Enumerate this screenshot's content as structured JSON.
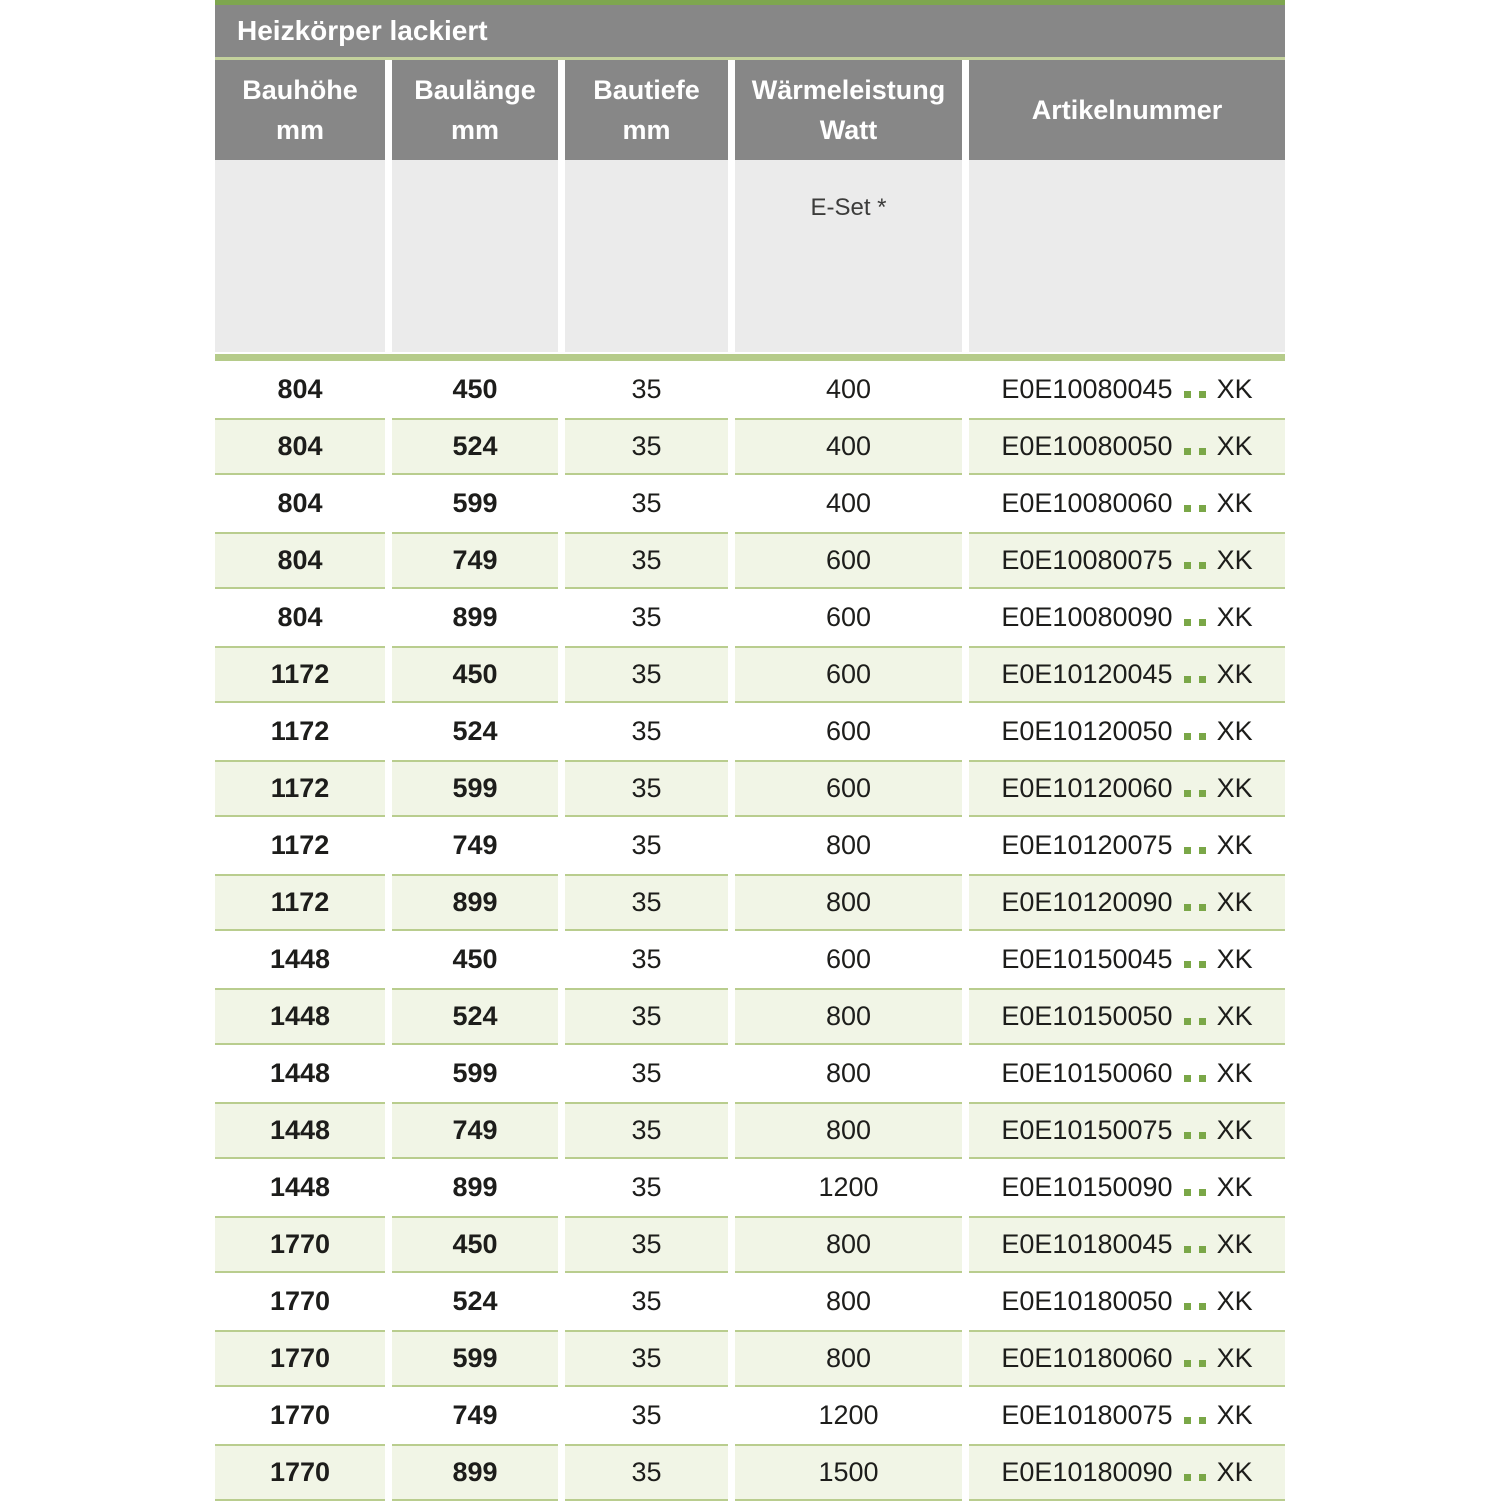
{
  "table": {
    "title": "Heizkörper lackiert",
    "columns": [
      {
        "line1": "Bauhöhe",
        "line2": "mm"
      },
      {
        "line1": "Baulänge",
        "line2": "mm"
      },
      {
        "line1": "Bautiefe",
        "line2": "mm"
      },
      {
        "line1": "Wärmeleistung",
        "line2": "Watt"
      },
      {
        "line1": "Artikelnummer",
        "line2": ""
      }
    ],
    "subheader": {
      "label": "E-Set *",
      "column_index": 3
    },
    "rows": [
      {
        "bauhoehe": "804",
        "baulaenge": "450",
        "bautiefe": "35",
        "watt": "400",
        "artikel_prefix": "E0E10080045",
        "artikel_suffix": "XK",
        "shaded": false
      },
      {
        "bauhoehe": "804",
        "baulaenge": "524",
        "bautiefe": "35",
        "watt": "400",
        "artikel_prefix": "E0E10080050",
        "artikel_suffix": "XK",
        "shaded": true
      },
      {
        "bauhoehe": "804",
        "baulaenge": "599",
        "bautiefe": "35",
        "watt": "400",
        "artikel_prefix": "E0E10080060",
        "artikel_suffix": "XK",
        "shaded": false
      },
      {
        "bauhoehe": "804",
        "baulaenge": "749",
        "bautiefe": "35",
        "watt": "600",
        "artikel_prefix": "E0E10080075",
        "artikel_suffix": "XK",
        "shaded": true
      },
      {
        "bauhoehe": "804",
        "baulaenge": "899",
        "bautiefe": "35",
        "watt": "600",
        "artikel_prefix": "E0E10080090",
        "artikel_suffix": "XK",
        "shaded": false
      },
      {
        "bauhoehe": "1172",
        "baulaenge": "450",
        "bautiefe": "35",
        "watt": "600",
        "artikel_prefix": "E0E10120045",
        "artikel_suffix": "XK",
        "shaded": true
      },
      {
        "bauhoehe": "1172",
        "baulaenge": "524",
        "bautiefe": "35",
        "watt": "600",
        "artikel_prefix": "E0E10120050",
        "artikel_suffix": "XK",
        "shaded": false
      },
      {
        "bauhoehe": "1172",
        "baulaenge": "599",
        "bautiefe": "35",
        "watt": "600",
        "artikel_prefix": "E0E10120060",
        "artikel_suffix": "XK",
        "shaded": true
      },
      {
        "bauhoehe": "1172",
        "baulaenge": "749",
        "bautiefe": "35",
        "watt": "800",
        "artikel_prefix": "E0E10120075",
        "artikel_suffix": "XK",
        "shaded": false
      },
      {
        "bauhoehe": "1172",
        "baulaenge": "899",
        "bautiefe": "35",
        "watt": "800",
        "artikel_prefix": "E0E10120090",
        "artikel_suffix": "XK",
        "shaded": true
      },
      {
        "bauhoehe": "1448",
        "baulaenge": "450",
        "bautiefe": "35",
        "watt": "600",
        "artikel_prefix": "E0E10150045",
        "artikel_suffix": "XK",
        "shaded": false
      },
      {
        "bauhoehe": "1448",
        "baulaenge": "524",
        "bautiefe": "35",
        "watt": "800",
        "artikel_prefix": "E0E10150050",
        "artikel_suffix": "XK",
        "shaded": true
      },
      {
        "bauhoehe": "1448",
        "baulaenge": "599",
        "bautiefe": "35",
        "watt": "800",
        "artikel_prefix": "E0E10150060",
        "artikel_suffix": "XK",
        "shaded": false
      },
      {
        "bauhoehe": "1448",
        "baulaenge": "749",
        "bautiefe": "35",
        "watt": "800",
        "artikel_prefix": "E0E10150075",
        "artikel_suffix": "XK",
        "shaded": true
      },
      {
        "bauhoehe": "1448",
        "baulaenge": "899",
        "bautiefe": "35",
        "watt": "1200",
        "artikel_prefix": "E0E10150090",
        "artikel_suffix": "XK",
        "shaded": false
      },
      {
        "bauhoehe": "1770",
        "baulaenge": "450",
        "bautiefe": "35",
        "watt": "800",
        "artikel_prefix": "E0E10180045",
        "artikel_suffix": "XK",
        "shaded": true
      },
      {
        "bauhoehe": "1770",
        "baulaenge": "524",
        "bautiefe": "35",
        "watt": "800",
        "artikel_prefix": "E0E10180050",
        "artikel_suffix": "XK",
        "shaded": false
      },
      {
        "bauhoehe": "1770",
        "baulaenge": "599",
        "bautiefe": "35",
        "watt": "800",
        "artikel_prefix": "E0E10180060",
        "artikel_suffix": "XK",
        "shaded": true
      },
      {
        "bauhoehe": "1770",
        "baulaenge": "749",
        "bautiefe": "35",
        "watt": "1200",
        "artikel_prefix": "E0E10180075",
        "artikel_suffix": "XK",
        "shaded": false
      },
      {
        "bauhoehe": "1770",
        "baulaenge": "899",
        "bautiefe": "35",
        "watt": "1500",
        "artikel_prefix": "E0E10180090",
        "artikel_suffix": "XK",
        "shaded": true
      }
    ]
  },
  "colors": {
    "header_gray": "#878787",
    "top_accent_green": "#7EA64F",
    "title_separator_green": "#C3D19C",
    "divider_bar_green": "#B5CB8A",
    "shaded_row_bg": "#F1F5E6",
    "shaded_row_border": "#B9CD8E",
    "dot_green": "#7AA747",
    "subheader_bg": "#EBEBEB",
    "header_text": "#FFFFFF",
    "body_text": "#1D1D1B"
  }
}
